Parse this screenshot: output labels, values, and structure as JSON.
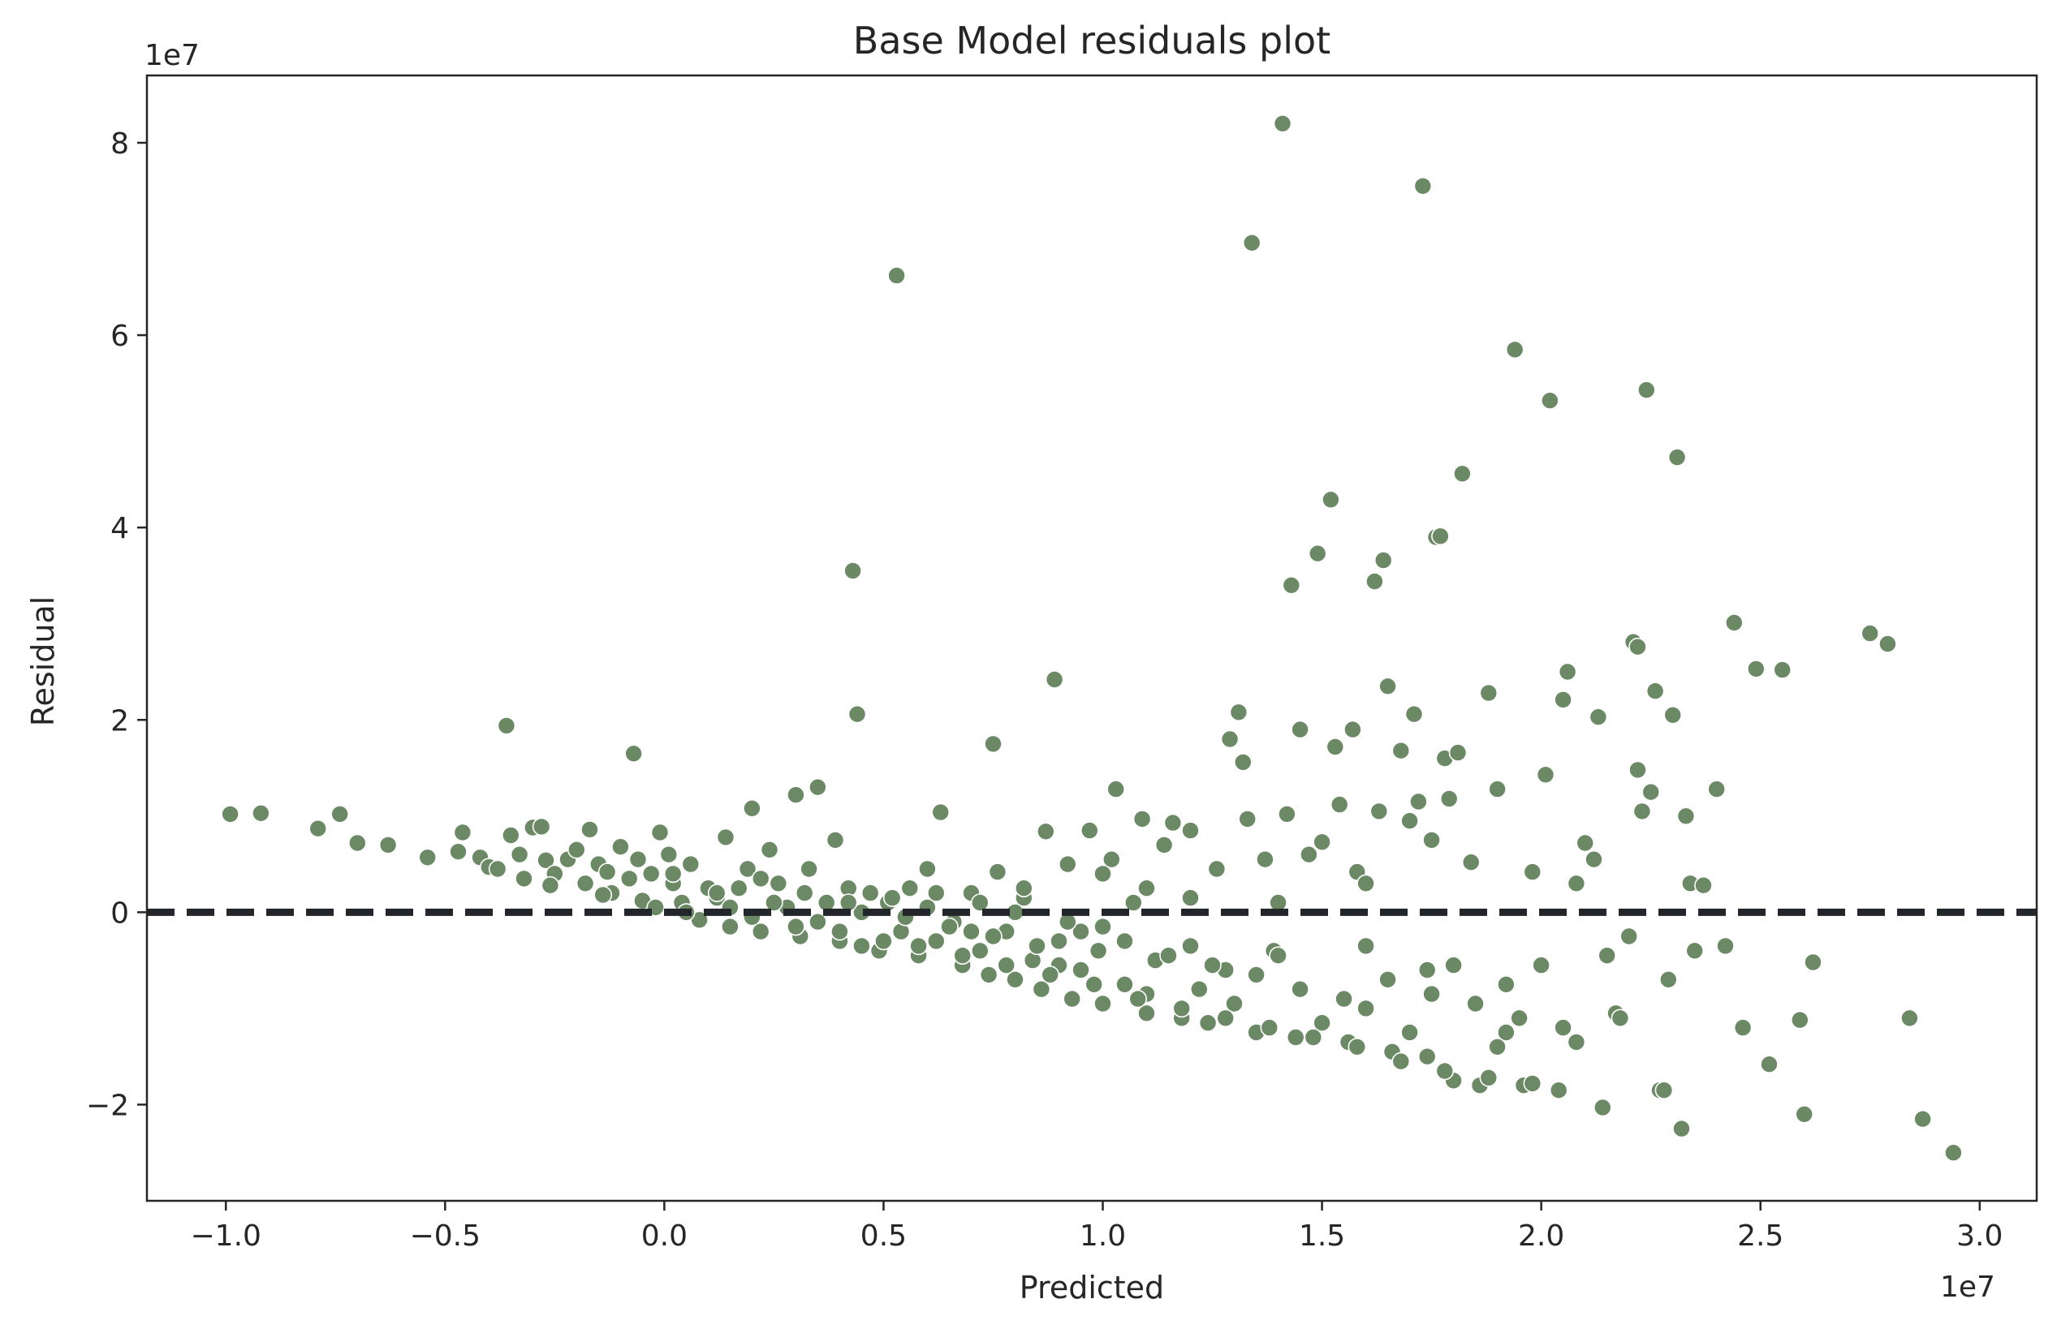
{
  "chart_data": {
    "type": "scatter",
    "title": "Base Model residuals plot",
    "xlabel": "Predicted",
    "ylabel": "Residual",
    "x_offset_text": "1e7",
    "y_offset_text": "1e7",
    "xlim": [
      -1.18,
      3.13
    ],
    "ylim": [
      -3.0,
      8.7
    ],
    "x_ticks": [
      -1.0,
      -0.5,
      0.0,
      0.5,
      1.0,
      1.5,
      2.0,
      2.5,
      3.0
    ],
    "x_tick_labels": [
      "−1.0",
      "−0.5",
      "0.0",
      "0.5",
      "1.0",
      "1.5",
      "2.0",
      "2.5",
      "3.0"
    ],
    "y_ticks": [
      -2,
      0,
      2,
      4,
      6,
      8
    ],
    "y_tick_labels": [
      "−2",
      "0",
      "2",
      "4",
      "6",
      "8"
    ],
    "reference_line_y": 0,
    "grid": false,
    "colors": {
      "points": "#6b8965",
      "point_edge": "#ffffff",
      "reference_line": "#22252a",
      "frame": "#262626"
    },
    "series": [
      {
        "points": [
          [
            -0.99,
            1.02
          ],
          [
            -0.92,
            1.03
          ],
          [
            -0.79,
            0.87
          ],
          [
            -0.74,
            1.02
          ],
          [
            -0.7,
            0.72
          ],
          [
            -0.63,
            0.7
          ],
          [
            -0.54,
            0.57
          ],
          [
            -0.47,
            0.63
          ],
          [
            -0.46,
            0.83
          ],
          [
            -0.42,
            0.57
          ],
          [
            -0.4,
            0.47
          ],
          [
            -0.36,
            1.94
          ],
          [
            -0.35,
            0.8
          ],
          [
            -0.33,
            0.6
          ],
          [
            -0.3,
            0.88
          ],
          [
            -0.28,
            0.89
          ],
          [
            -0.27,
            0.54
          ],
          [
            -0.25,
            0.4
          ],
          [
            -0.22,
            0.55
          ],
          [
            -0.2,
            0.65
          ],
          [
            -0.18,
            0.3
          ],
          [
            -0.17,
            0.86
          ],
          [
            -0.15,
            0.5
          ],
          [
            -0.13,
            0.42
          ],
          [
            -0.12,
            0.2
          ],
          [
            -0.1,
            0.68
          ],
          [
            -0.08,
            0.35
          ],
          [
            -0.07,
            1.65
          ],
          [
            -0.06,
            0.55
          ],
          [
            -0.05,
            0.12
          ],
          [
            -0.03,
            0.4
          ],
          [
            -0.01,
            0.83
          ],
          [
            0.01,
            0.6
          ],
          [
            0.02,
            0.3
          ],
          [
            0.04,
            0.1
          ],
          [
            0.06,
            0.5
          ],
          [
            0.08,
            -0.08
          ],
          [
            0.1,
            0.25
          ],
          [
            0.12,
            0.15
          ],
          [
            0.14,
            0.78
          ],
          [
            0.15,
            -0.15
          ],
          [
            0.17,
            0.25
          ],
          [
            0.19,
            0.45
          ],
          [
            0.2,
            1.08
          ],
          [
            0.22,
            -0.2
          ],
          [
            0.24,
            0.65
          ],
          [
            0.26,
            0.3
          ],
          [
            0.28,
            0.05
          ],
          [
            0.3,
            1.22
          ],
          [
            0.31,
            -0.25
          ],
          [
            0.33,
            0.45
          ],
          [
            0.35,
            1.3
          ],
          [
            0.37,
            0.1
          ],
          [
            0.39,
            0.75
          ],
          [
            0.4,
            -0.3
          ],
          [
            0.42,
            0.25
          ],
          [
            0.43,
            3.55
          ],
          [
            0.44,
            2.06
          ],
          [
            0.45,
            -0.35
          ],
          [
            0.47,
            0.2
          ],
          [
            0.49,
            -0.4
          ],
          [
            0.51,
            0.1
          ],
          [
            0.53,
            6.62
          ],
          [
            0.54,
            -0.2
          ],
          [
            0.56,
            0.25
          ],
          [
            0.58,
            -0.45
          ],
          [
            0.6,
            0.45
          ],
          [
            0.62,
            -0.3
          ],
          [
            0.63,
            1.04
          ],
          [
            0.66,
            -0.1
          ],
          [
            0.68,
            -0.55
          ],
          [
            0.7,
            0.2
          ],
          [
            0.72,
            -0.4
          ],
          [
            0.74,
            -0.65
          ],
          [
            0.75,
            1.75
          ],
          [
            0.76,
            0.42
          ],
          [
            0.78,
            -0.2
          ],
          [
            0.8,
            -0.7
          ],
          [
            0.82,
            0.15
          ],
          [
            0.84,
            -0.5
          ],
          [
            0.86,
            -0.8
          ],
          [
            0.87,
            0.84
          ],
          [
            0.89,
            2.42
          ],
          [
            0.9,
            -0.3
          ],
          [
            0.92,
            0.5
          ],
          [
            0.93,
            -0.9
          ],
          [
            0.95,
            -0.6
          ],
          [
            0.97,
            0.85
          ],
          [
            0.99,
            -0.4
          ],
          [
            1.0,
            -0.95
          ],
          [
            1.02,
            0.55
          ],
          [
            1.03,
            1.28
          ],
          [
            1.05,
            -0.75
          ],
          [
            1.07,
            0.1
          ],
          [
            1.09,
            0.97
          ],
          [
            1.1,
            -1.05
          ],
          [
            1.12,
            -0.5
          ],
          [
            1.14,
            0.7
          ],
          [
            1.16,
            0.93
          ],
          [
            1.18,
            -1.1
          ],
          [
            1.2,
            0.15
          ],
          [
            1.22,
            -0.8
          ],
          [
            1.24,
            -1.15
          ],
          [
            1.26,
            0.45
          ],
          [
            1.28,
            -0.6
          ],
          [
            1.29,
            1.8
          ],
          [
            1.31,
            2.08
          ],
          [
            1.32,
            1.56
          ],
          [
            1.33,
            0.97
          ],
          [
            1.34,
            6.96
          ],
          [
            1.35,
            -1.25
          ],
          [
            1.37,
            0.55
          ],
          [
            1.39,
            -0.4
          ],
          [
            1.41,
            8.2
          ],
          [
            1.42,
            1.02
          ],
          [
            1.43,
            3.4
          ],
          [
            1.44,
            -1.3
          ],
          [
            1.45,
            1.9
          ],
          [
            1.47,
            0.6
          ],
          [
            1.49,
            3.73
          ],
          [
            1.5,
            0.73
          ],
          [
            1.52,
            4.29
          ],
          [
            1.53,
            1.72
          ],
          [
            1.54,
            1.12
          ],
          [
            1.56,
            -1.35
          ],
          [
            1.57,
            1.9
          ],
          [
            1.58,
            0.42
          ],
          [
            1.6,
            -1.0
          ],
          [
            1.62,
            3.44
          ],
          [
            1.63,
            1.05
          ],
          [
            1.64,
            3.66
          ],
          [
            1.65,
            2.35
          ],
          [
            1.66,
            -1.45
          ],
          [
            1.68,
            1.68
          ],
          [
            1.7,
            0.95
          ],
          [
            1.71,
            2.06
          ],
          [
            1.72,
            1.15
          ],
          [
            1.73,
            7.55
          ],
          [
            1.74,
            -1.5
          ],
          [
            1.75,
            0.75
          ],
          [
            1.76,
            3.9
          ],
          [
            1.77,
            3.91
          ],
          [
            1.78,
            1.6
          ],
          [
            1.79,
            1.18
          ],
          [
            1.8,
            -1.75
          ],
          [
            1.81,
            1.66
          ],
          [
            1.82,
            4.56
          ],
          [
            1.84,
            0.52
          ],
          [
            1.86,
            -1.8
          ],
          [
            1.88,
            2.28
          ],
          [
            1.9,
            1.28
          ],
          [
            1.92,
            -1.25
          ],
          [
            1.94,
            5.85
          ],
          [
            1.96,
            -1.8
          ],
          [
            1.98,
            0.42
          ],
          [
            2.01,
            1.43
          ],
          [
            2.02,
            5.32
          ],
          [
            2.04,
            -1.85
          ],
          [
            2.05,
            2.21
          ],
          [
            2.06,
            2.5
          ],
          [
            2.08,
            0.3
          ],
          [
            2.1,
            0.72
          ],
          [
            2.13,
            2.03
          ],
          [
            2.14,
            -2.03
          ],
          [
            2.17,
            -1.05
          ],
          [
            2.2,
            -0.25
          ],
          [
            2.21,
            2.81
          ],
          [
            2.22,
            2.76
          ],
          [
            2.23,
            1.05
          ],
          [
            2.24,
            5.43
          ],
          [
            2.25,
            1.25
          ],
          [
            2.26,
            2.3
          ],
          [
            2.27,
            -1.85
          ],
          [
            2.29,
            -0.7
          ],
          [
            2.3,
            2.05
          ],
          [
            2.31,
            4.73
          ],
          [
            2.32,
            -2.25
          ],
          [
            2.33,
            1.0
          ],
          [
            2.34,
            0.3
          ],
          [
            2.37,
            0.28
          ],
          [
            2.4,
            1.28
          ],
          [
            2.42,
            -0.35
          ],
          [
            2.44,
            3.01
          ],
          [
            2.46,
            -1.2
          ],
          [
            2.49,
            2.53
          ],
          [
            2.52,
            -1.58
          ],
          [
            2.55,
            2.52
          ],
          [
            2.59,
            -1.12
          ],
          [
            2.6,
            -2.1
          ],
          [
            2.62,
            -0.52
          ],
          [
            2.75,
            2.9
          ],
          [
            2.79,
            2.79
          ],
          [
            2.84,
            -1.1
          ],
          [
            2.87,
            -2.15
          ],
          [
            2.94,
            -2.5
          ],
          [
            0.2,
            -0.05
          ],
          [
            0.25,
            0.1
          ],
          [
            0.35,
            -0.1
          ],
          [
            0.45,
            0.0
          ],
          [
            0.55,
            -0.05
          ],
          [
            0.65,
            -0.15
          ],
          [
            0.75,
            -0.25
          ],
          [
            0.85,
            -0.35
          ],
          [
            0.95,
            -0.2
          ],
          [
            1.05,
            -0.3
          ],
          [
            1.15,
            -0.45
          ],
          [
            1.25,
            -0.55
          ],
          [
            1.35,
            -0.65
          ],
          [
            1.45,
            -0.8
          ],
          [
            1.55,
            -0.9
          ],
          [
            1.65,
            -0.7
          ],
          [
            1.75,
            -0.85
          ],
          [
            1.85,
            -0.95
          ],
          [
            1.95,
            -1.1
          ],
          [
            2.05,
            -1.2
          ],
          [
            2.15,
            -0.45
          ],
          [
            0.6,
            0.05
          ],
          [
            0.7,
            -0.2
          ],
          [
            0.8,
            0.0
          ],
          [
            0.9,
            -0.55
          ],
          [
            1.0,
            -0.15
          ],
          [
            1.1,
            -0.85
          ],
          [
            1.2,
            -0.35
          ],
          [
            1.3,
            -0.95
          ],
          [
            1.4,
            -0.45
          ],
          [
            1.5,
            -1.15
          ],
          [
            1.6,
            -0.35
          ],
          [
            1.7,
            -1.25
          ],
          [
            1.8,
            -0.55
          ],
          [
            1.9,
            -1.4
          ],
          [
            -0.38,
            0.45
          ],
          [
            -0.32,
            0.35
          ],
          [
            -0.26,
            0.28
          ],
          [
            -0.14,
            0.18
          ],
          [
            -0.02,
            0.05
          ],
          [
            0.05,
            0.0
          ],
          [
            0.15,
            0.05
          ],
          [
            0.3,
            -0.15
          ],
          [
            0.4,
            -0.2
          ],
          [
            0.5,
            -0.3
          ],
          [
            0.58,
            -0.35
          ],
          [
            0.68,
            -0.45
          ],
          [
            0.78,
            -0.55
          ],
          [
            0.88,
            -0.65
          ],
          [
            0.98,
            -0.75
          ],
          [
            1.08,
            -0.9
          ],
          [
            1.18,
            -1.0
          ],
          [
            1.28,
            -1.1
          ],
          [
            1.38,
            -1.2
          ],
          [
            1.48,
            -1.3
          ],
          [
            1.58,
            -1.4
          ],
          [
            1.68,
            -1.55
          ],
          [
            1.78,
            -1.65
          ],
          [
            1.88,
            -1.72
          ],
          [
            1.98,
            -1.78
          ],
          [
            2.08,
            -1.35
          ],
          [
            2.18,
            -1.1
          ],
          [
            2.28,
            -1.85
          ],
          [
            2.35,
            -0.4
          ],
          [
            2.22,
            1.48
          ],
          [
            2.12,
            0.55
          ],
          [
            2.0,
            -0.55
          ],
          [
            1.92,
            -0.75
          ],
          [
            1.74,
            -0.6
          ],
          [
            1.6,
            0.3
          ],
          [
            1.4,
            0.1
          ],
          [
            1.2,
            0.85
          ],
          [
            1.1,
            0.25
          ],
          [
            1.0,
            0.4
          ],
          [
            0.92,
            -0.1
          ],
          [
            0.82,
            0.25
          ],
          [
            0.72,
            0.1
          ],
          [
            0.62,
            0.2
          ],
          [
            0.52,
            0.15
          ],
          [
            0.42,
            0.1
          ],
          [
            0.32,
            0.2
          ],
          [
            0.22,
            0.35
          ],
          [
            0.12,
            0.2
          ],
          [
            0.02,
            0.4
          ]
        ]
      }
    ]
  }
}
